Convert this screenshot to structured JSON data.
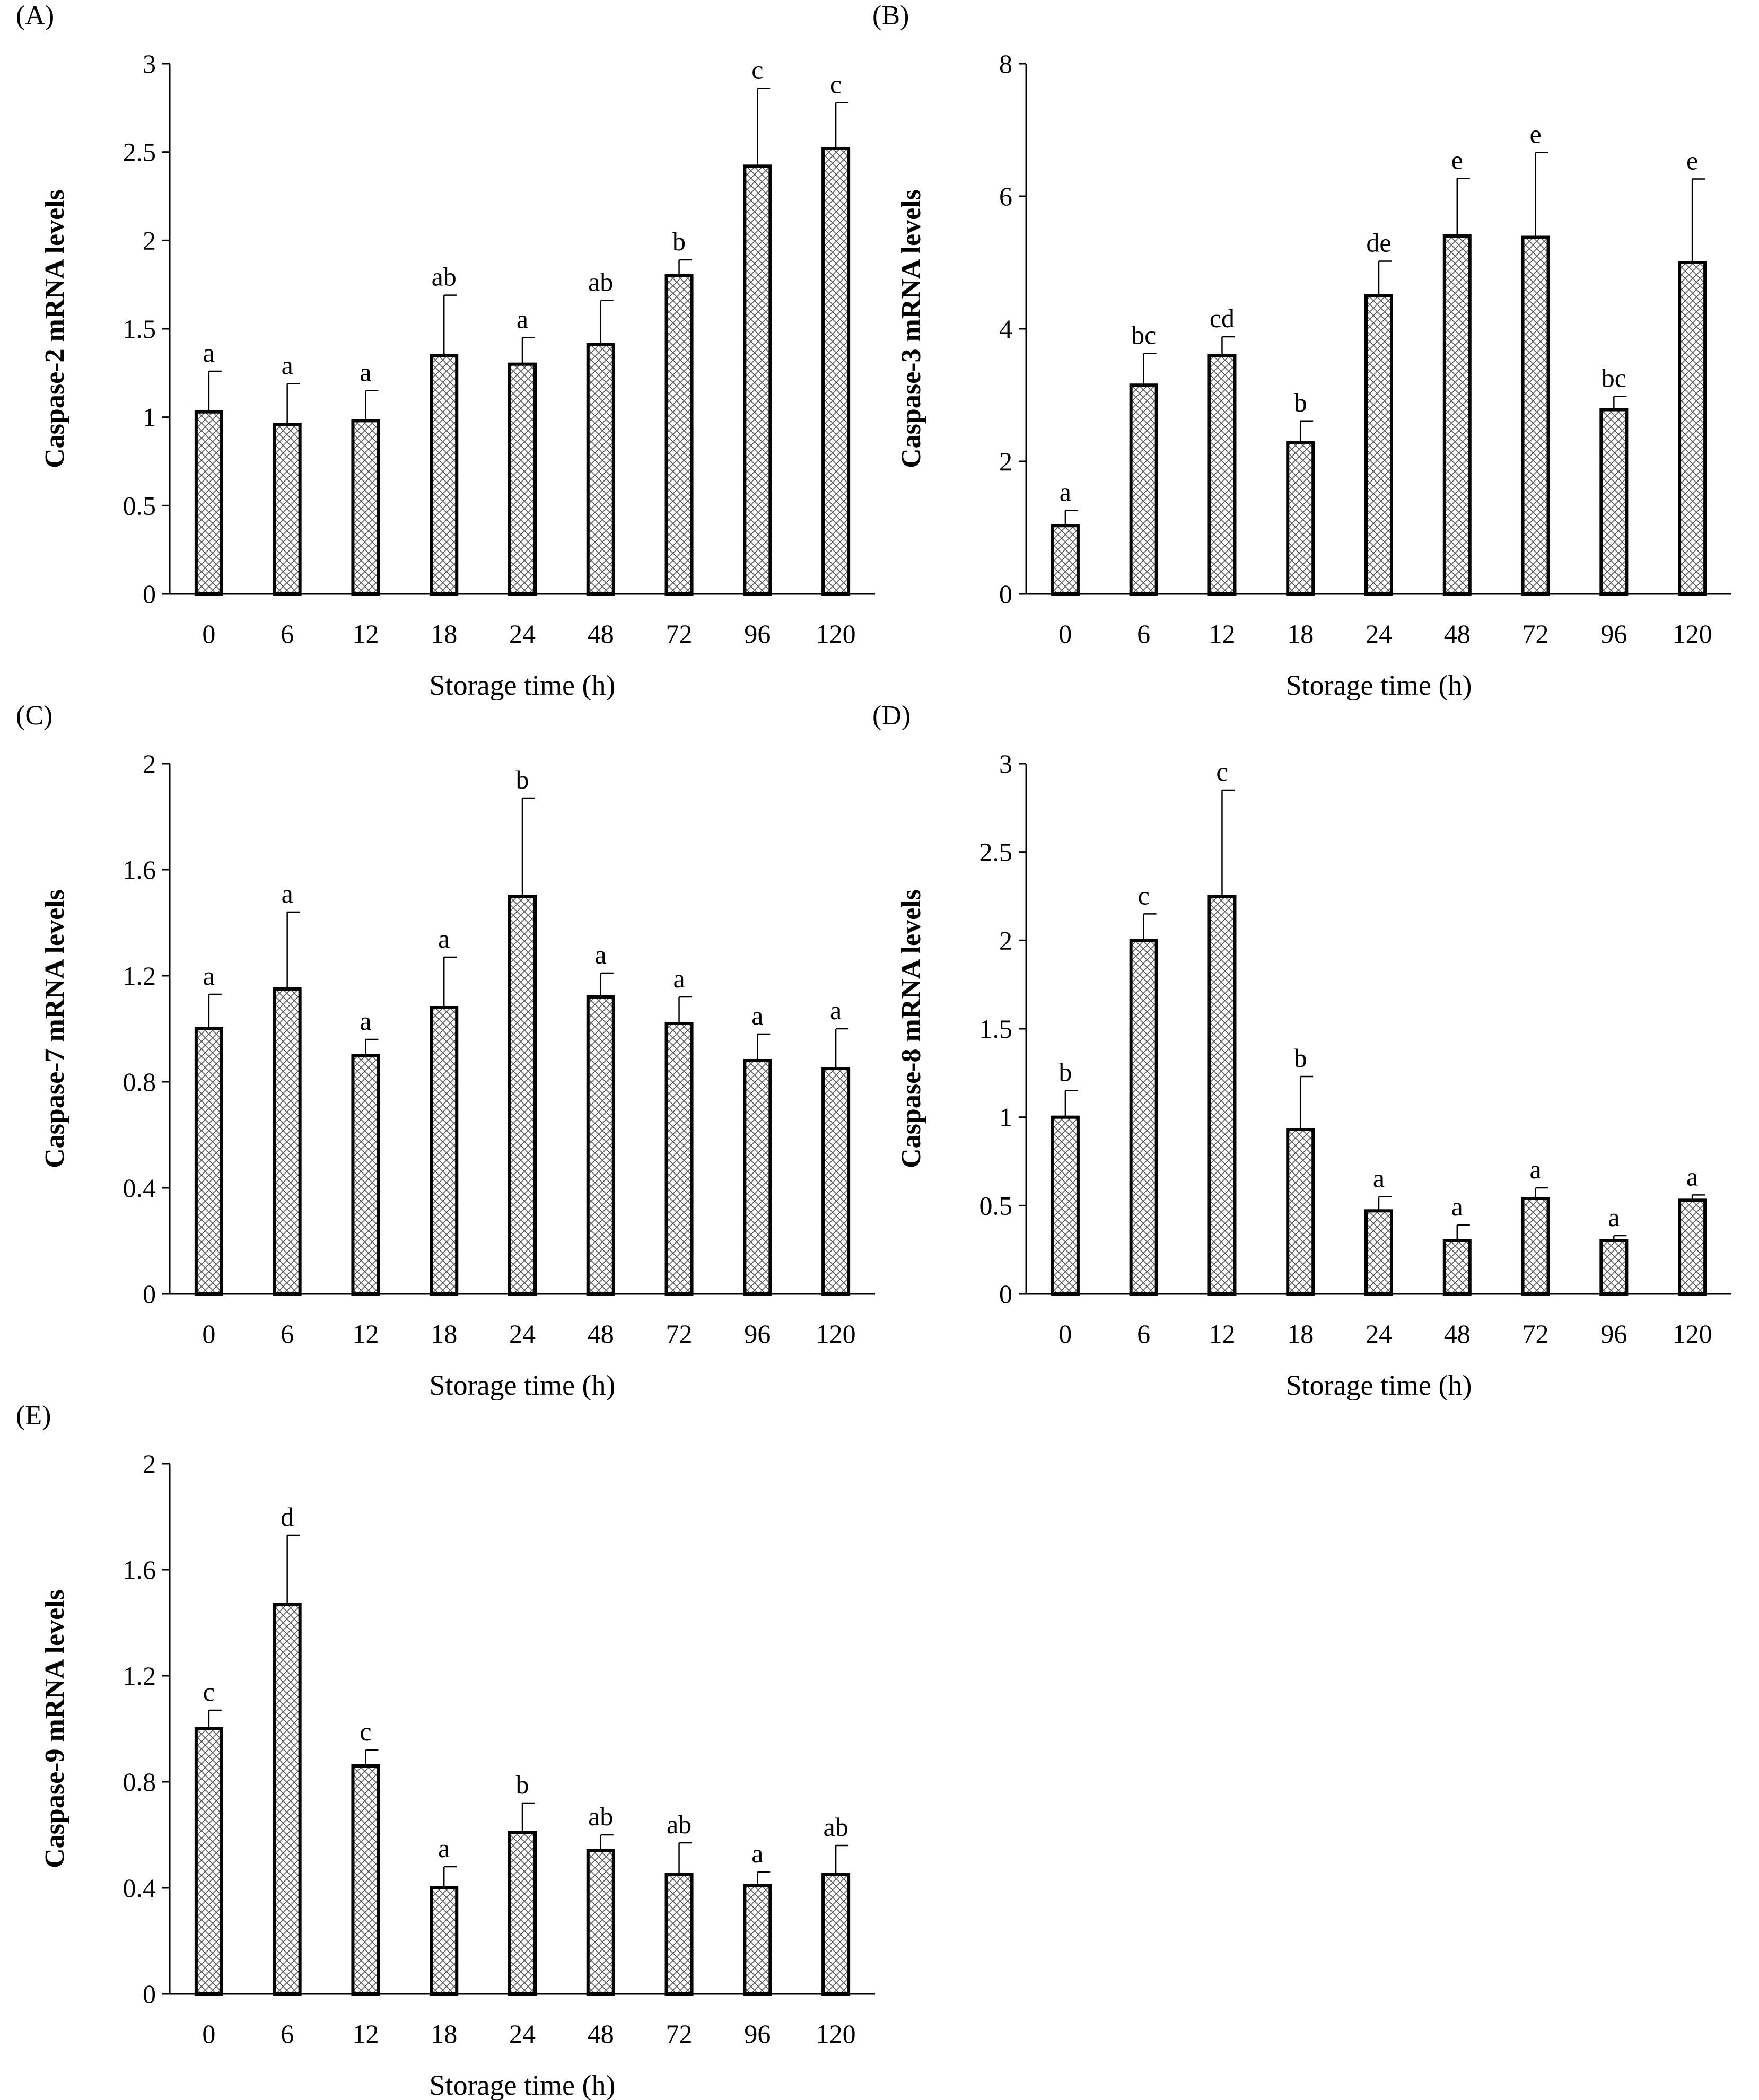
{
  "chart_data": [
    {
      "panel": "(A)",
      "type": "bar",
      "ylabel": "Caspase-2 mRNA levels",
      "xlabel": "Storage time (h)",
      "categories": [
        "0",
        "6",
        "12",
        "18",
        "24",
        "48",
        "72",
        "96",
        "120"
      ],
      "values": [
        1.03,
        0.96,
        0.98,
        1.35,
        1.3,
        1.41,
        1.8,
        2.42,
        2.52
      ],
      "errors": [
        0.23,
        0.23,
        0.17,
        0.34,
        0.15,
        0.25,
        0.09,
        0.44,
        0.26
      ],
      "significance": [
        "a",
        "a",
        "a",
        "ab",
        "a",
        "ab",
        "b",
        "c",
        "c"
      ],
      "ylim": [
        0,
        3
      ],
      "yticks": [
        0,
        0.5,
        1,
        1.5,
        2,
        2.5,
        3
      ],
      "ytick_labels": [
        "0",
        "0.5",
        "1",
        "1.5",
        "2",
        "2.5",
        "3"
      ],
      "grid": false
    },
    {
      "panel": "(B)",
      "type": "bar",
      "ylabel": "Caspase-3 mRNA levels",
      "xlabel": "Storage time (h)",
      "categories": [
        "0",
        "6",
        "12",
        "18",
        "24",
        "48",
        "72",
        "96",
        "120"
      ],
      "values": [
        1.03,
        3.15,
        3.6,
        2.28,
        4.5,
        5.4,
        5.38,
        2.78,
        5.0
      ],
      "errors": [
        0.23,
        0.48,
        0.28,
        0.33,
        0.52,
        0.87,
        1.28,
        0.2,
        1.26
      ],
      "significance": [
        "a",
        "bc",
        "cd",
        "b",
        "de",
        "e",
        "e",
        "bc",
        "e"
      ],
      "ylim": [
        0,
        8
      ],
      "yticks": [
        0,
        2,
        4,
        6,
        8
      ],
      "ytick_labels": [
        "0",
        "2",
        "4",
        "6",
        "8"
      ],
      "grid": false
    },
    {
      "panel": "(C)",
      "type": "bar",
      "ylabel": "Caspase-7 mRNA levels",
      "xlabel": "Storage time (h)",
      "categories": [
        "0",
        "6",
        "12",
        "18",
        "24",
        "48",
        "72",
        "96",
        "120"
      ],
      "values": [
        1.0,
        1.15,
        0.9,
        1.08,
        1.5,
        1.12,
        1.02,
        0.88,
        0.85
      ],
      "errors": [
        0.13,
        0.29,
        0.06,
        0.19,
        0.37,
        0.09,
        0.1,
        0.1,
        0.15
      ],
      "significance": [
        "a",
        "a",
        "a",
        "a",
        "b",
        "a",
        "a",
        "a",
        "a"
      ],
      "ylim": [
        0,
        2
      ],
      "yticks": [
        0,
        0.4,
        0.8,
        1.2,
        1.6,
        2
      ],
      "ytick_labels": [
        "0",
        "0.4",
        "0.8",
        "1.2",
        "1.6",
        "2"
      ],
      "grid": false
    },
    {
      "panel": "(D)",
      "type": "bar",
      "ylabel": "Caspase-8 mRNA levels",
      "xlabel": "Storage time (h)",
      "categories": [
        "0",
        "6",
        "12",
        "18",
        "24",
        "48",
        "72",
        "96",
        "120"
      ],
      "values": [
        1.0,
        2.0,
        2.25,
        0.93,
        0.47,
        0.3,
        0.54,
        0.3,
        0.53
      ],
      "errors": [
        0.15,
        0.15,
        0.6,
        0.3,
        0.08,
        0.09,
        0.06,
        0.03,
        0.03
      ],
      "significance": [
        "b",
        "c",
        "c",
        "b",
        "a",
        "a",
        "a",
        "a",
        "a"
      ],
      "ylim": [
        0,
        3
      ],
      "yticks": [
        0,
        0.5,
        1,
        1.5,
        2,
        2.5,
        3
      ],
      "ytick_labels": [
        "0",
        "0.5",
        "1",
        "1.5",
        "2",
        "2.5",
        "3"
      ],
      "grid": false
    },
    {
      "panel": "(E)",
      "type": "bar",
      "ylabel": "Caspase-9 mRNA levels",
      "xlabel": "Storage time (h)",
      "categories": [
        "0",
        "6",
        "12",
        "18",
        "24",
        "48",
        "72",
        "96",
        "120"
      ],
      "values": [
        1.0,
        1.47,
        0.86,
        0.4,
        0.61,
        0.54,
        0.45,
        0.41,
        0.45
      ],
      "errors": [
        0.07,
        0.26,
        0.06,
        0.08,
        0.11,
        0.06,
        0.12,
        0.05,
        0.11
      ],
      "significance": [
        "c",
        "d",
        "c",
        "a",
        "b",
        "ab",
        "ab",
        "a",
        "ab"
      ],
      "ylim": [
        0,
        2
      ],
      "yticks": [
        0,
        0.4,
        0.8,
        1.2,
        1.6,
        2
      ],
      "ytick_labels": [
        "0",
        "0.4",
        "0.8",
        "1.2",
        "1.6",
        "2"
      ],
      "grid": false
    }
  ]
}
